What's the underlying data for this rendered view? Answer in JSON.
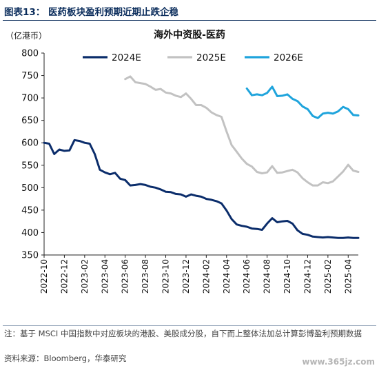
{
  "figure_title": "图表13：  医药板块盈利预期近期止跌企稳",
  "note": "注：基于 MSCI 中国指数中对应板块的港股、美股成分股，自下而上整体法加总计算彭博盈利预期数据",
  "source": "资料来源：Bloomberg，华泰研究",
  "watermark": "www.365jz.com",
  "chart_data": {
    "type": "line",
    "title": "海外中资股-医药",
    "ylabel": "（亿港币）",
    "xlabel": "",
    "ylim": [
      350,
      800
    ],
    "yticks": [
      350,
      400,
      450,
      500,
      550,
      600,
      650,
      700,
      750,
      800
    ],
    "x_range": [
      "2022-10",
      "2025-05"
    ],
    "x_tick_labels": [
      "2022-10",
      "2022-12",
      "2023-02",
      "2023-04",
      "2023-06",
      "2023-08",
      "2023-10",
      "2023-12",
      "2024-02",
      "2024-04",
      "2024-06",
      "2024-08",
      "2024-10",
      "2024-12",
      "2025-02",
      "2025-04"
    ],
    "grid": false,
    "legend_position": "top",
    "series": [
      {
        "name": "2024E",
        "color": "#0b2d6b",
        "x": [
          "2022-10",
          "2022-10.5",
          "2022-11",
          "2022-11.5",
          "2022-12",
          "2022-12.5",
          "2023-01",
          "2023-01.5",
          "2023-02",
          "2023-02.5",
          "2023-03",
          "2023-03.5",
          "2023-04",
          "2023-04.5",
          "2023-05",
          "2023-05.5",
          "2023-06",
          "2023-06.5",
          "2023-07",
          "2023-07.5",
          "2023-08",
          "2023-08.5",
          "2023-09",
          "2023-09.5",
          "2023-10",
          "2023-10.5",
          "2023-11",
          "2023-11.5",
          "2023-12",
          "2023-12.5",
          "2024-01",
          "2024-01.5",
          "2024-02",
          "2024-02.5",
          "2024-03",
          "2024-03.5",
          "2024-04",
          "2024-04.5",
          "2024-05",
          "2024-05.5",
          "2024-06",
          "2024-06.5",
          "2024-07",
          "2024-07.5",
          "2024-08",
          "2024-08.5",
          "2024-09",
          "2024-09.5",
          "2024-10",
          "2024-10.5",
          "2024-11",
          "2024-11.5",
          "2024-12",
          "2024-12.5",
          "2025-01",
          "2025-01.5",
          "2025-02",
          "2025-02.5",
          "2025-03",
          "2025-03.5",
          "2025-04",
          "2025-04.5",
          "2025-05"
        ],
        "values": [
          600,
          598,
          575,
          585,
          582,
          583,
          606,
          604,
          600,
          598,
          575,
          540,
          534,
          530,
          533,
          520,
          517,
          505,
          506,
          508,
          506,
          502,
          500,
          496,
          491,
          490,
          486,
          485,
          480,
          485,
          482,
          480,
          475,
          473,
          470,
          465,
          449,
          430,
          418,
          415,
          413,
          409,
          408,
          406,
          420,
          432,
          423,
          425,
          426,
          420,
          405,
          397,
          395,
          391,
          390,
          389,
          390,
          389,
          388,
          388,
          389,
          388,
          388
        ]
      },
      {
        "name": "2025E",
        "color": "#c2c2c2",
        "x": [
          "2023-06",
          "2023-06.5",
          "2023-07",
          "2023-07.5",
          "2023-08",
          "2023-08.5",
          "2023-09",
          "2023-09.5",
          "2023-10",
          "2023-10.5",
          "2023-11",
          "2023-11.5",
          "2023-12",
          "2023-12.5",
          "2024-01",
          "2024-01.5",
          "2024-02",
          "2024-02.5",
          "2024-03",
          "2024-03.5",
          "2024-04",
          "2024-04.5",
          "2024-05",
          "2024-05.5",
          "2024-06",
          "2024-06.5",
          "2024-07",
          "2024-07.5",
          "2024-08",
          "2024-08.5",
          "2024-09",
          "2024-09.5",
          "2024-10",
          "2024-10.5",
          "2024-11",
          "2024-11.5",
          "2024-12",
          "2024-12.5",
          "2025-01",
          "2025-01.5",
          "2025-02",
          "2025-02.5",
          "2025-03",
          "2025-03.5",
          "2025-04",
          "2025-04.5",
          "2025-05"
        ],
        "values": [
          742,
          748,
          735,
          733,
          731,
          725,
          718,
          720,
          712,
          710,
          705,
          702,
          710,
          698,
          684,
          684,
          678,
          668,
          662,
          658,
          625,
          595,
          580,
          565,
          553,
          547,
          535,
          532,
          534,
          548,
          533,
          534,
          537,
          540,
          534,
          521,
          512,
          505,
          505,
          512,
          510,
          514,
          525,
          536,
          551,
          538,
          535
        ]
      },
      {
        "name": "2026E",
        "color": "#1fa4dc",
        "x": [
          "2024-06",
          "2024-06.5",
          "2024-07",
          "2024-07.5",
          "2024-08",
          "2024-08.5",
          "2024-09",
          "2024-09.5",
          "2024-10",
          "2024-10.5",
          "2024-11",
          "2024-11.5",
          "2024-12",
          "2024-12.5",
          "2025-01",
          "2025-01.5",
          "2025-02",
          "2025-02.5",
          "2025-03",
          "2025-03.5",
          "2025-04",
          "2025-04.5",
          "2025-05"
        ],
        "values": [
          721,
          706,
          708,
          706,
          711,
          725,
          704,
          705,
          708,
          698,
          693,
          681,
          675,
          660,
          655,
          665,
          667,
          665,
          670,
          680,
          675,
          662,
          661
        ]
      }
    ]
  }
}
